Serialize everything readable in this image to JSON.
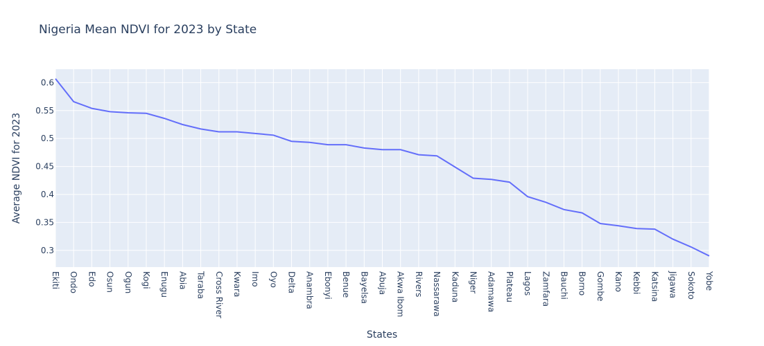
{
  "chart_data": {
    "type": "line",
    "title": "Nigeria Mean NDVI for 2023 by State",
    "xlabel": "States",
    "ylabel": "Average NDVI for 2023",
    "categories": [
      "Ekiti",
      "Ondo",
      "Edo",
      "Osun",
      "Ogun",
      "Kogi",
      "Enugu",
      "Abia",
      "Taraba",
      "Cross River",
      "Kwara",
      "Imo",
      "Oyo",
      "Delta",
      "Anambra",
      "Ebonyi",
      "Benue",
      "Bayelsa",
      "Abuja",
      "Akwa Ibom",
      "Rivers",
      "Nassarawa",
      "Kaduna",
      "Niger",
      "Adamawa",
      "Plateau",
      "Lagos",
      "Zamfara",
      "Bauchi",
      "Borno",
      "Gombe",
      "Kano",
      "Kebbi",
      "Katsina",
      "Jigawa",
      "Sokoto",
      "Yobe"
    ],
    "series": [
      {
        "values": [
          0.607,
          0.566,
          0.554,
          0.548,
          0.546,
          0.545,
          0.536,
          0.525,
          0.517,
          0.512,
          0.512,
          0.509,
          0.506,
          0.495,
          0.493,
          0.489,
          0.489,
          0.483,
          0.48,
          0.48,
          0.471,
          0.469,
          0.449,
          0.429,
          0.427,
          0.422,
          0.396,
          0.386,
          0.373,
          0.367,
          0.348,
          0.344,
          0.339,
          0.338,
          0.32,
          0.306,
          0.29
        ],
        "color": "#636efa"
      }
    ],
    "yticks": [
      "0.3",
      "0.35",
      "0.4",
      "0.45",
      "0.5",
      "0.55",
      "0.6"
    ],
    "ylim": [
      0.27,
      0.624
    ],
    "grid": true,
    "plot_bgcolor": "#e5ecf6",
    "grid_color": "#ffffff",
    "text_color": "#2a3f5f"
  }
}
